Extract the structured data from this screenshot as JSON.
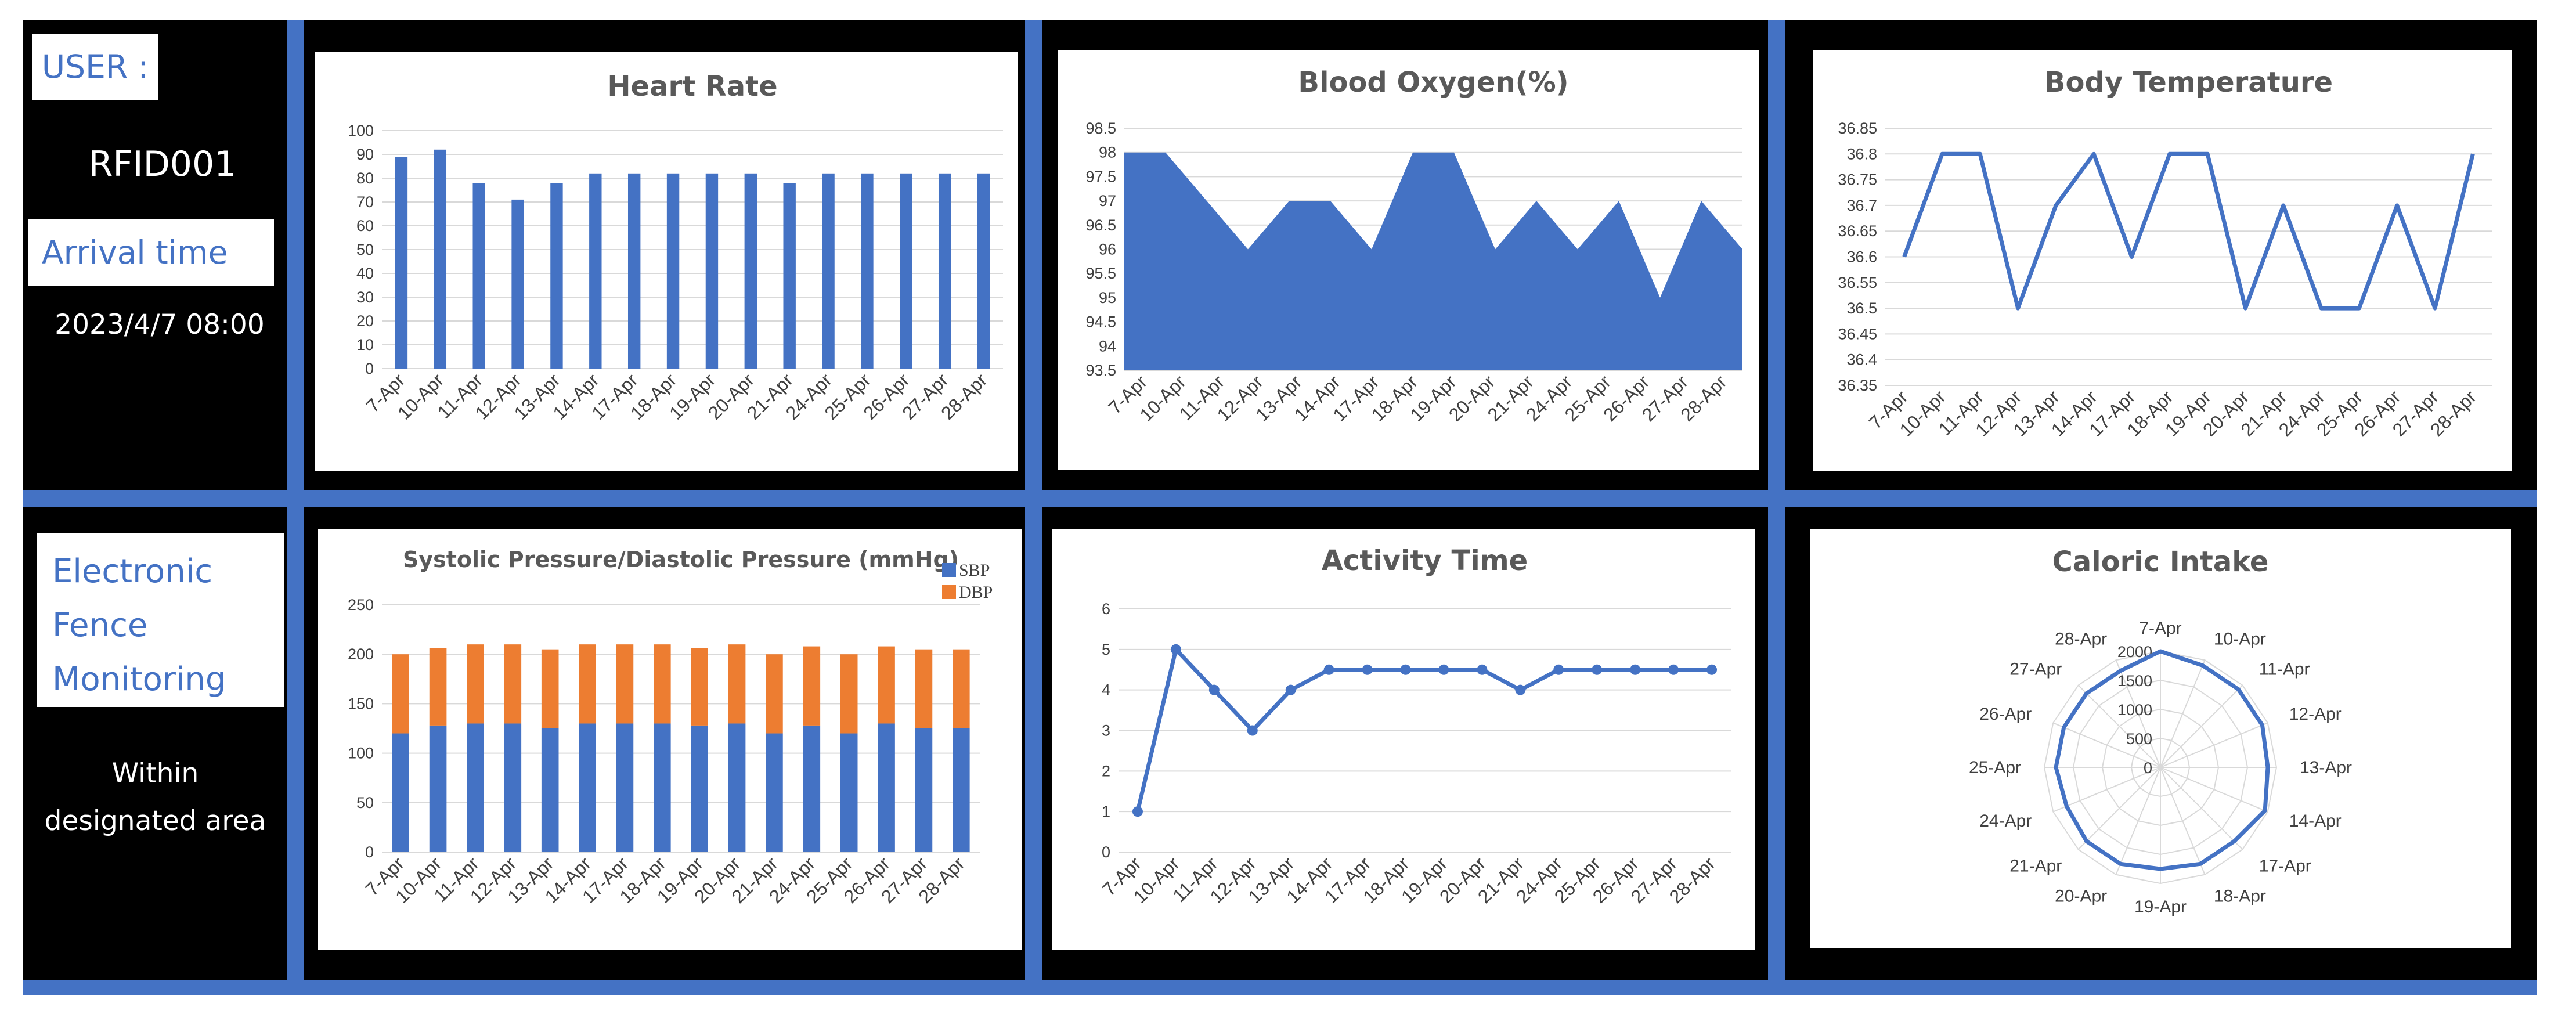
{
  "sidebar": {
    "user_label": "USER :",
    "user_id": "RFID001",
    "arrival_label": "Arrival time",
    "arrival_value": "2023/4/7 08:00",
    "fence_label": [
      "Electronic",
      "Fence",
      "Monitoring"
    ],
    "fence_status": [
      "Within",
      "designated area"
    ]
  },
  "colors": {
    "frame": "#000000",
    "accent": "#4472c4",
    "sbp": "#4472c4",
    "dbp": "#ed7d31",
    "grid": "#d9d9d9"
  },
  "chart_data": [
    {
      "type": "bar",
      "title": "Heart Rate",
      "categories": [
        "7-Apr",
        "10-Apr",
        "11-Apr",
        "12-Apr",
        "13-Apr",
        "14-Apr",
        "17-Apr",
        "18-Apr",
        "19-Apr",
        "20-Apr",
        "21-Apr",
        "24-Apr",
        "25-Apr",
        "26-Apr",
        "27-Apr",
        "28-Apr"
      ],
      "values": [
        89,
        92,
        78,
        71,
        78,
        82,
        82,
        82,
        82,
        82,
        78,
        82,
        82,
        82,
        82,
        82
      ],
      "ylim": [
        0,
        100
      ],
      "yticks": [
        "0",
        "10",
        "20",
        "30",
        "40",
        "50",
        "60",
        "70",
        "80",
        "90",
        "100"
      ],
      "grid": true
    },
    {
      "type": "area",
      "title": "Blood Oxygen(%)",
      "categories": [
        "7-Apr",
        "10-Apr",
        "11-Apr",
        "12-Apr",
        "13-Apr",
        "14-Apr",
        "17-Apr",
        "18-Apr",
        "19-Apr",
        "20-Apr",
        "21-Apr",
        "24-Apr",
        "25-Apr",
        "26-Apr",
        "27-Apr",
        "28-Apr"
      ],
      "values": [
        98,
        98,
        97,
        96,
        97,
        97,
        96,
        98,
        98,
        96,
        97,
        96,
        97,
        95,
        97,
        96
      ],
      "ylim": [
        93.5,
        98.5
      ],
      "yticks": [
        "93.5",
        "94",
        "94.5",
        "95",
        "95.5",
        "96",
        "96.5",
        "97",
        "97.5",
        "98",
        "98.5"
      ],
      "grid": true
    },
    {
      "type": "line",
      "title": "Body Temperature",
      "categories": [
        "7-Apr",
        "10-Apr",
        "11-Apr",
        "12-Apr",
        "13-Apr",
        "14-Apr",
        "17-Apr",
        "18-Apr",
        "19-Apr",
        "20-Apr",
        "21-Apr",
        "24-Apr",
        "25-Apr",
        "26-Apr",
        "27-Apr",
        "28-Apr"
      ],
      "values": [
        36.6,
        36.8,
        36.8,
        36.5,
        36.7,
        36.8,
        36.6,
        36.8,
        36.8,
        36.5,
        36.7,
        36.5,
        36.5,
        36.7,
        36.5,
        36.8
      ],
      "ylim": [
        36.35,
        36.85
      ],
      "yticks": [
        "36.35",
        "36.4",
        "36.45",
        "36.5",
        "36.55",
        "36.6",
        "36.65",
        "36.7",
        "36.75",
        "36.8",
        "36.85"
      ],
      "grid": true
    },
    {
      "type": "bar",
      "stacked": true,
      "title": "Systolic Pressure/Diastolic Pressure (mmHg)",
      "categories": [
        "7-Apr",
        "10-Apr",
        "11-Apr",
        "12-Apr",
        "13-Apr",
        "14-Apr",
        "17-Apr",
        "18-Apr",
        "19-Apr",
        "20-Apr",
        "21-Apr",
        "24-Apr",
        "25-Apr",
        "26-Apr",
        "27-Apr",
        "28-Apr"
      ],
      "series": [
        {
          "name": "SBP",
          "values": [
            120,
            128,
            130,
            130,
            125,
            130,
            130,
            130,
            128,
            130,
            120,
            128,
            120,
            130,
            125,
            125
          ]
        },
        {
          "name": "DBP",
          "values": [
            80,
            78,
            80,
            80,
            80,
            80,
            80,
            80,
            78,
            80,
            80,
            80,
            80,
            78,
            80,
            80
          ]
        }
      ],
      "ylim": [
        0,
        250
      ],
      "yticks": [
        "0",
        "50",
        "100",
        "150",
        "200",
        "250"
      ],
      "legend": "top-right",
      "grid": true
    },
    {
      "type": "line",
      "title": "Activity Time",
      "categories": [
        "7-Apr",
        "10-Apr",
        "11-Apr",
        "12-Apr",
        "13-Apr",
        "14-Apr",
        "17-Apr",
        "18-Apr",
        "19-Apr",
        "20-Apr",
        "21-Apr",
        "24-Apr",
        "25-Apr",
        "26-Apr",
        "27-Apr",
        "28-Apr"
      ],
      "values": [
        1,
        5,
        4,
        3,
        4,
        4.5,
        4.5,
        4.5,
        4.5,
        4.5,
        4,
        4.5,
        4.5,
        4.5,
        4.5,
        4.5
      ],
      "ylim": [
        0,
        6
      ],
      "yticks": [
        "0",
        "1",
        "2",
        "3",
        "4",
        "5",
        "6"
      ],
      "markers": true,
      "grid": true
    },
    {
      "type": "radar",
      "title": "Caloric Intake",
      "categories": [
        "7-Apr",
        "10-Apr",
        "11-Apr",
        "12-Apr",
        "13-Apr",
        "14-Apr",
        "17-Apr",
        "18-Apr",
        "19-Apr",
        "20-Apr",
        "21-Apr",
        "24-Apr",
        "25-Apr",
        "26-Apr",
        "27-Apr",
        "28-Apr"
      ],
      "values": [
        2000,
        1900,
        1900,
        1900,
        1850,
        1950,
        1800,
        1800,
        1750,
        1800,
        1800,
        1750,
        1800,
        1800,
        1800,
        1800
      ],
      "rlim": [
        0,
        2000
      ],
      "rticks": [
        "0",
        "500",
        "1000",
        "1500",
        "2000"
      ],
      "grid": true
    }
  ]
}
